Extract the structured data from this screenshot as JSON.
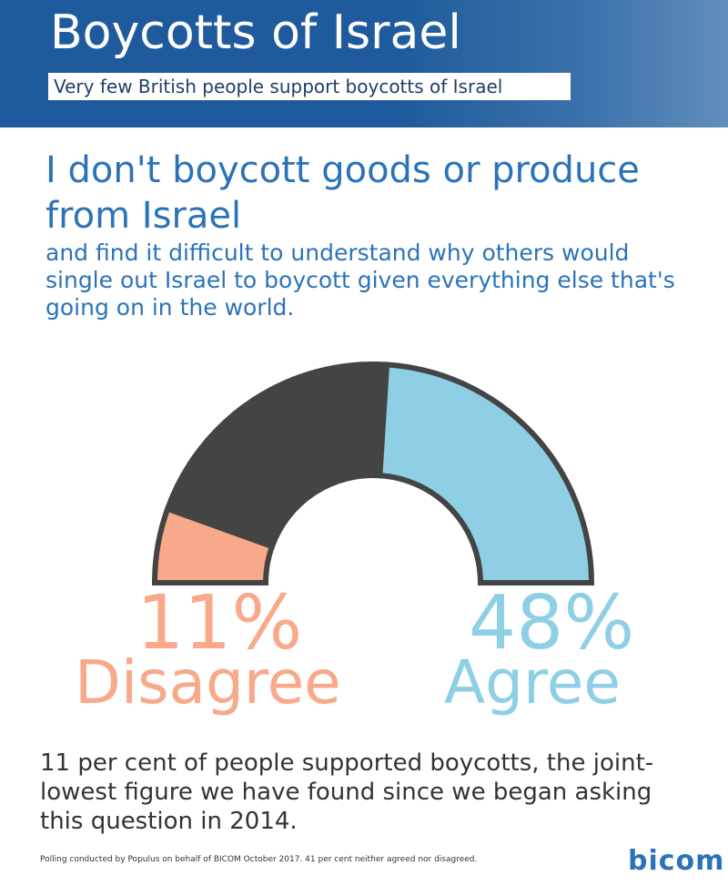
{
  "header": {
    "title": "Boycotts of Israel",
    "subtitle": "Very few British people support boycotts of Israel"
  },
  "statement": {
    "headline": "I don't boycott goods or produce from Israel",
    "detail": "and find it difficult to understand why others would single out Israel to boycott given everything else that's going on in the world."
  },
  "chart_data": {
    "type": "pie",
    "subtype": "half-donut gauge",
    "title": "",
    "series": [
      {
        "name": "Disagree",
        "value": 11,
        "color": "#f8a98a"
      },
      {
        "name": "Neither",
        "value": 41,
        "color": "#444444"
      },
      {
        "name": "Agree",
        "value": 48,
        "color": "#8ecfe5"
      }
    ],
    "labels": {
      "disagree_pct": "11%",
      "disagree_label": "Disagree",
      "agree_pct": "48%",
      "agree_label": "Agree"
    }
  },
  "finding": "11 per cent of people supported boycotts, the joint-lowest figure we have found since we began asking this question in 2014.",
  "footnote": "Polling conducted by Populus on behalf of BICOM October 2017. 41 per cent neither agreed nor disagreed.",
  "logo": {
    "text": "bicom"
  },
  "colors": {
    "header_bg": "#1f5b9c",
    "text_blue": "#2b73b8",
    "disagree": "#f8a98a",
    "agree": "#8ecfe5",
    "neither": "#444444"
  }
}
